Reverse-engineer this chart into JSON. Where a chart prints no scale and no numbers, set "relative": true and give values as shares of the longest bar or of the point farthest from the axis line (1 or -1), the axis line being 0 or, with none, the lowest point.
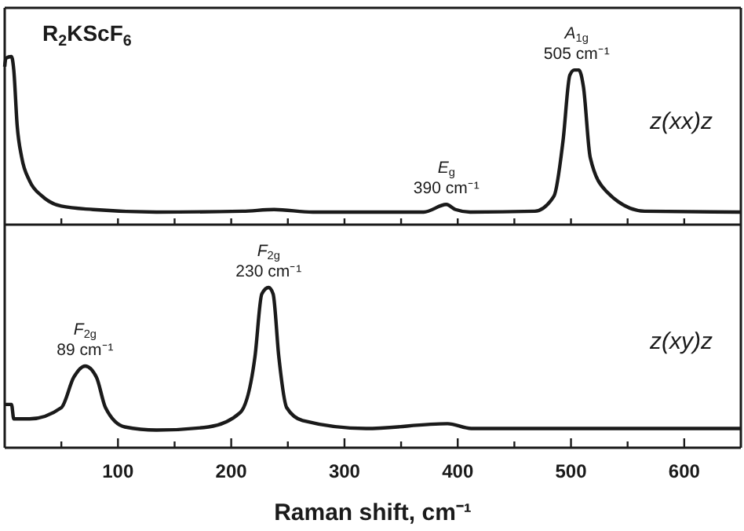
{
  "chart_data": [
    {
      "type": "line",
      "title": "R$_{2}$KScF$_{6}$",
      "relative": true,
      "tick_labels": false,
      "xlim": [
        0,
        650
      ],
      "xticks": [
        {
          "value": 50,
          "label": null
        },
        {
          "value": 100,
          "label": null
        },
        {
          "value": 150,
          "label": null
        },
        {
          "value": 200,
          "label": null
        },
        {
          "value": 250,
          "label": null
        },
        {
          "value": 300,
          "label": null
        },
        {
          "value": 350,
          "label": null
        },
        {
          "value": 400,
          "label": null
        },
        {
          "value": 450,
          "label": null
        },
        {
          "value": 500,
          "label": null
        },
        {
          "value": 550,
          "label": null
        },
        {
          "value": 600,
          "label": null
        }
      ],
      "series": [
        {
          "name": "z(xx)z",
          "color": "#1a1a1a",
          "x": [
            0,
            1,
            6,
            8,
            11,
            15,
            22,
            33,
            50,
            78,
            134,
            210,
            238,
            272,
            370,
            390,
            398,
            411,
            468,
            485,
            493,
            499,
            503,
            507,
            511,
            517,
            531,
            565,
            650
          ],
          "values": [
            0.94,
            0.99,
            1,
            0.92,
            0.59,
            0.4,
            0.26,
            0.17,
            0.11,
            0.09,
            0.075,
            0.08,
            0.09,
            0.075,
            0.075,
            0.12,
            0.09,
            0.075,
            0.08,
            0.17,
            0.5,
            0.89,
            0.92,
            0.92,
            0.82,
            0.4,
            0.2,
            0.08,
            0.075
          ]
        }
      ],
      "annotations": [
        {
          "text": "E$_{g}$\n390 cm⁻¹",
          "x": 390,
          "y": 0.12
        },
        {
          "text": "A$_{1g}$\n505 cm⁻¹",
          "x": 505,
          "y": 0.92
        }
      ]
    },
    {
      "type": "line",
      "relative": true,
      "tick_labels": "x",
      "xlabel": "Raman shift, cm⁻¹",
      "xlim": [
        0,
        650
      ],
      "xticks": [
        {
          "value": 50,
          "label": null
        },
        100,
        {
          "value": 150,
          "label": null
        },
        200,
        {
          "value": 250,
          "label": null
        },
        300,
        {
          "value": 350,
          "label": null
        },
        400,
        {
          "value": 450,
          "label": null
        },
        500,
        {
          "value": 550,
          "label": null
        },
        600
      ],
      "series": [
        {
          "name": "z(xy)z",
          "color": "#1a1a1a",
          "x": [
            0,
            6,
            8,
            22,
            50,
            61,
            71,
            81,
            89,
            106,
            134,
            180,
            208,
            221,
            227,
            233,
            237,
            242,
            249,
            263,
            319,
            391,
            412,
            650
          ],
          "values": [
            0.27,
            0.27,
            0.18,
            0.18,
            0.25,
            0.44,
            0.51,
            0.44,
            0.25,
            0.13,
            0.11,
            0.13,
            0.22,
            0.57,
            0.96,
            1,
            0.96,
            0.57,
            0.25,
            0.17,
            0.12,
            0.15,
            0.12,
            0.12
          ]
        }
      ],
      "annotations": [
        {
          "text": "F$_{2g}$\n89 cm⁻¹",
          "x": 71,
          "y": 0.51
        },
        {
          "text": "F$_{2g}$\n230 cm⁻¹",
          "x": 233,
          "y": 1
        }
      ]
    }
  ]
}
